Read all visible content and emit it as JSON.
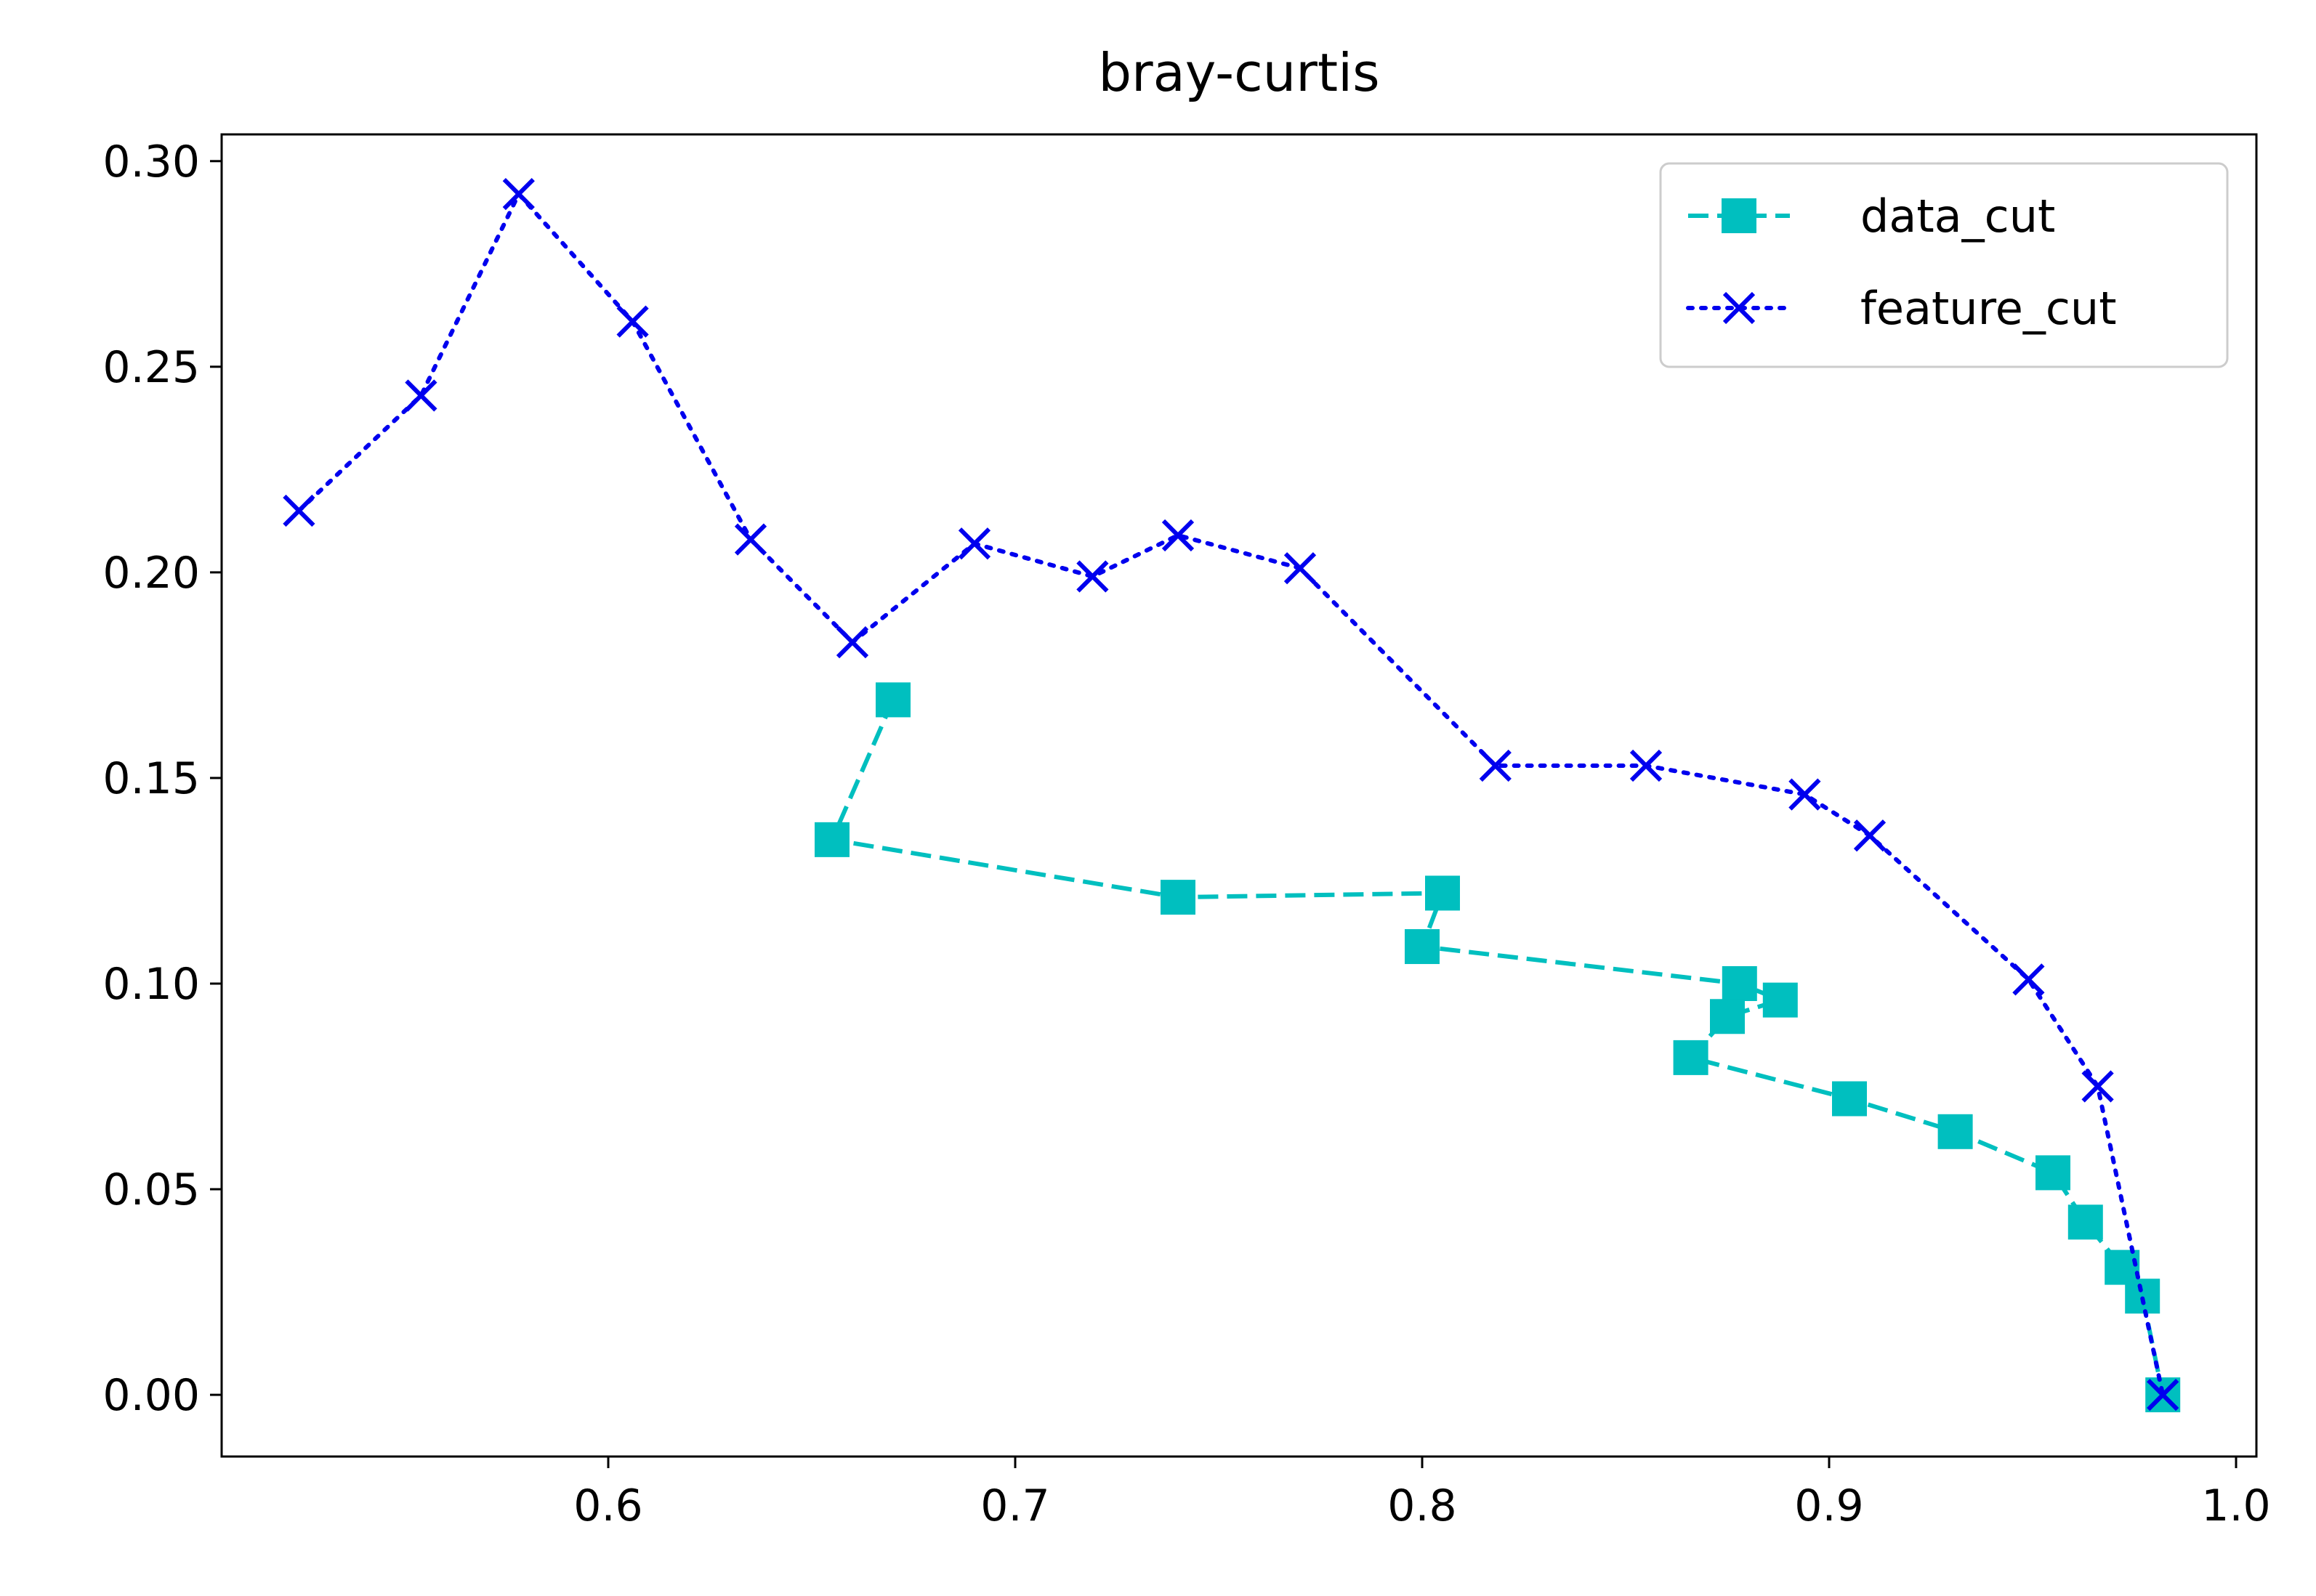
{
  "chart_data": {
    "type": "line",
    "title": "bray-curtis",
    "xlabel": "",
    "ylabel": "",
    "xlim": [
      0.505,
      1.005
    ],
    "ylim": [
      -0.015,
      0.3065
    ],
    "xticks": [
      0.6,
      0.7,
      0.8,
      0.9,
      1.0
    ],
    "xtick_labels": [
      "0.6",
      "0.7",
      "0.8",
      "0.9",
      "1.0"
    ],
    "yticks": [
      0.0,
      0.05,
      0.1,
      0.15,
      0.2,
      0.25,
      0.3
    ],
    "ytick_labels": [
      "0.00",
      "0.05",
      "0.10",
      "0.15",
      "0.20",
      "0.25",
      "0.30"
    ],
    "grid": false,
    "legend_position": "top-right",
    "series": [
      {
        "name": "data_cut",
        "color": "#00bfbf",
        "linestyle": "dashed",
        "marker": "square",
        "x": [
          0.67,
          0.655,
          0.74,
          0.805,
          0.8,
          0.878,
          0.888,
          0.875,
          0.866,
          0.905,
          0.931,
          0.955,
          0.963,
          0.972,
          0.977,
          0.982
        ],
        "y": [
          0.169,
          0.135,
          0.121,
          0.122,
          0.109,
          0.1,
          0.096,
          0.092,
          0.082,
          0.072,
          0.064,
          0.054,
          0.042,
          0.031,
          0.024,
          0.0
        ]
      },
      {
        "name": "feature_cut",
        "color": "#0000ee",
        "linestyle": "dotted",
        "marker": "x",
        "x": [
          0.524,
          0.554,
          0.578,
          0.606,
          0.635,
          0.66,
          0.69,
          0.719,
          0.74,
          0.77,
          0.818,
          0.855,
          0.894,
          0.91,
          0.949,
          0.966,
          0.982
        ],
        "y": [
          0.215,
          0.243,
          0.292,
          0.261,
          0.208,
          0.183,
          0.207,
          0.199,
          0.209,
          0.201,
          0.153,
          0.153,
          0.146,
          0.136,
          0.101,
          0.075,
          0.0
        ]
      }
    ]
  }
}
